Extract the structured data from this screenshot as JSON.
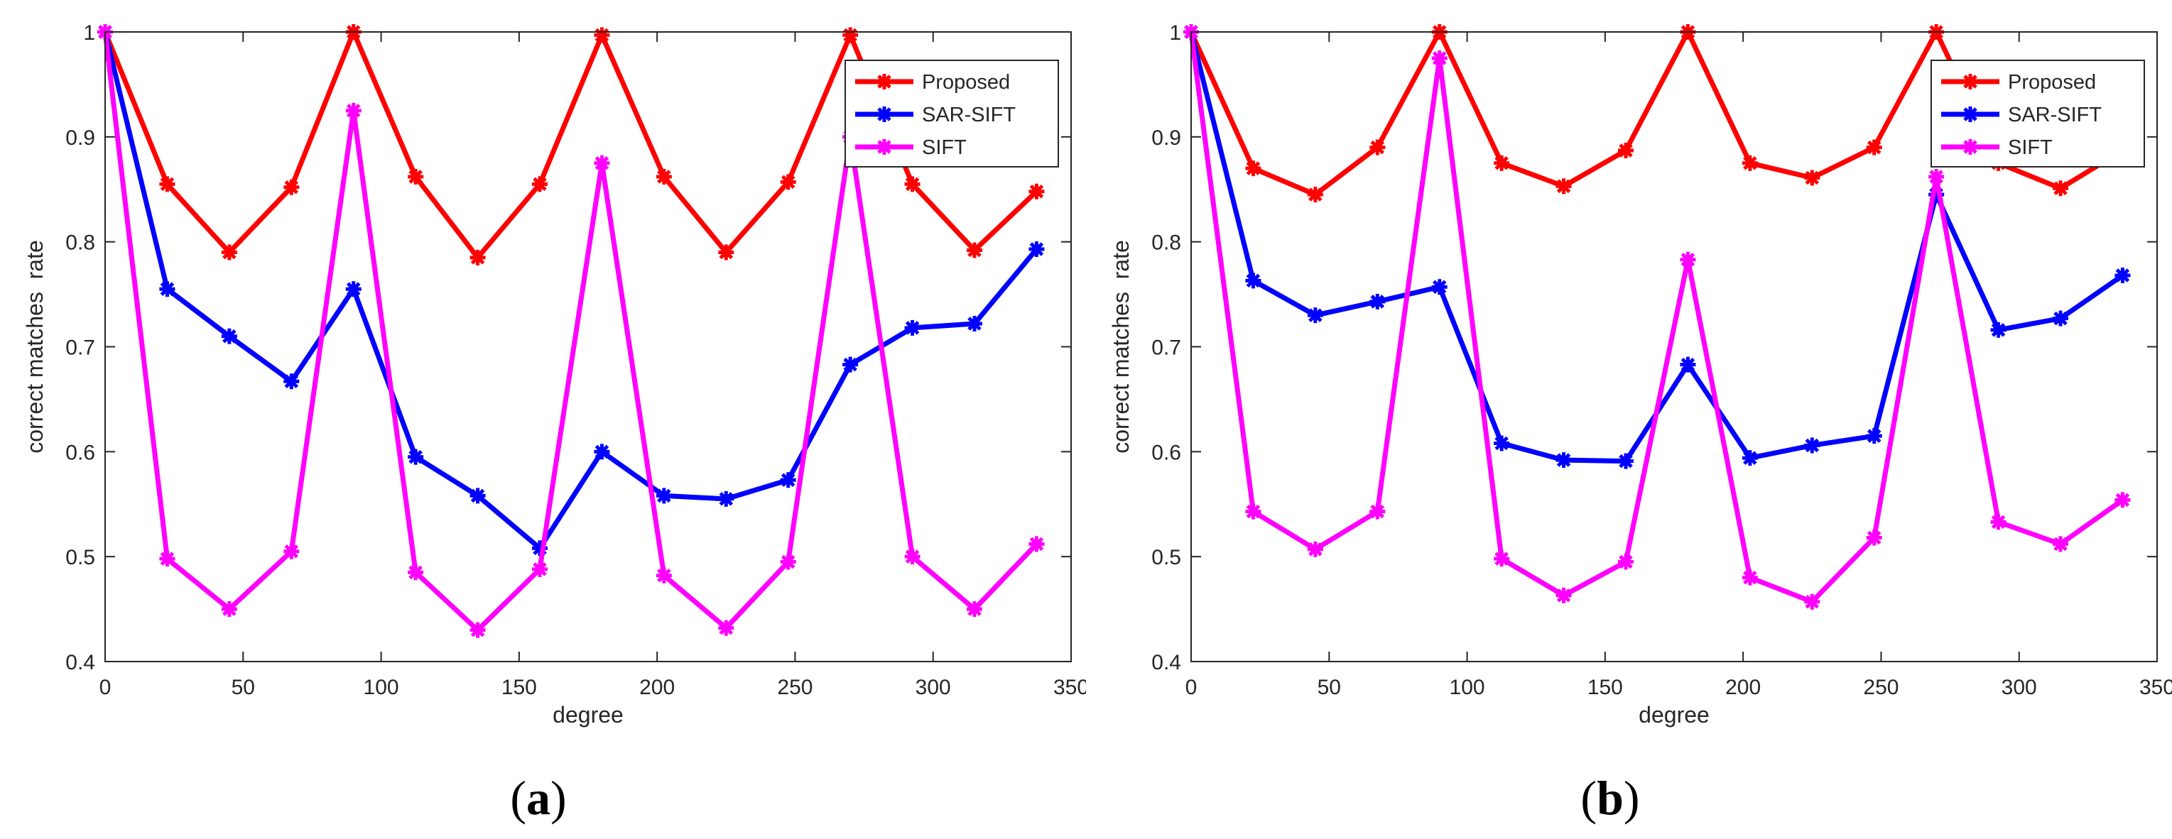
{
  "chart_data": [
    {
      "type": "line",
      "panel_label": "a",
      "xlabel": "degree",
      "ylabel": "correct matches  rate",
      "xlim": [
        0,
        350
      ],
      "ylim": [
        0.4,
        1
      ],
      "xticks": [
        0,
        50,
        100,
        150,
        200,
        250,
        300,
        350
      ],
      "yticks": [
        0.4,
        0.5,
        0.6,
        0.7,
        0.8,
        0.9,
        1
      ],
      "ytick_labels": [
        "0.4",
        "0.5",
        "0.6",
        "0.7",
        "0.8",
        "0.9",
        "1"
      ],
      "legend_position": "top-right",
      "x": [
        0,
        22.5,
        45,
        67.5,
        90,
        112.5,
        135,
        157.5,
        180,
        202.5,
        225,
        247.5,
        270,
        292.5,
        315,
        337.5
      ],
      "series": [
        {
          "name": "Proposed",
          "color": "#ff0000",
          "values": [
            1.0,
            0.855,
            0.79,
            0.852,
            1.0,
            0.862,
            0.785,
            0.855,
            0.997,
            0.862,
            0.79,
            0.857,
            0.997,
            0.855,
            0.792,
            0.848
          ]
        },
        {
          "name": "SAR-SIFT",
          "color": "#0000ff",
          "values": [
            1.0,
            0.755,
            0.71,
            0.667,
            0.755,
            0.595,
            0.558,
            0.508,
            0.6,
            0.558,
            0.555,
            0.573,
            0.683,
            0.718,
            0.722,
            0.793
          ]
        },
        {
          "name": "SIFT",
          "color": "#ff00ff",
          "values": [
            1.0,
            0.498,
            0.45,
            0.505,
            0.925,
            0.485,
            0.43,
            0.488,
            0.875,
            0.482,
            0.432,
            0.495,
            0.9,
            0.5,
            0.45,
            0.512
          ]
        }
      ]
    },
    {
      "type": "line",
      "panel_label": "b",
      "xlabel": "degree",
      "ylabel": "correct matches  rate",
      "xlim": [
        0,
        350
      ],
      "ylim": [
        0.4,
        1
      ],
      "xticks": [
        0,
        50,
        100,
        150,
        200,
        250,
        300,
        350
      ],
      "yticks": [
        0.4,
        0.5,
        0.6,
        0.7,
        0.8,
        0.9,
        1
      ],
      "ytick_labels": [
        "0.4",
        "0.5",
        "0.6",
        "0.7",
        "0.8",
        "0.9",
        "1"
      ],
      "legend_position": "top-right",
      "x": [
        0,
        22.5,
        45,
        67.5,
        90,
        112.5,
        135,
        157.5,
        180,
        202.5,
        225,
        247.5,
        270,
        292.5,
        315,
        337.5
      ],
      "series": [
        {
          "name": "Proposed",
          "color": "#ff0000",
          "values": [
            1.0,
            0.87,
            0.845,
            0.89,
            1.0,
            0.875,
            0.853,
            0.887,
            1.0,
            0.875,
            0.861,
            0.89,
            1.0,
            0.875,
            0.851,
            0.887
          ]
        },
        {
          "name": "SAR-SIFT",
          "color": "#0000ff",
          "values": [
            1.0,
            0.763,
            0.73,
            0.743,
            0.757,
            0.608,
            0.592,
            0.591,
            0.683,
            0.594,
            0.606,
            0.615,
            0.845,
            0.716,
            0.727,
            0.768
          ]
        },
        {
          "name": "SIFT",
          "color": "#ff00ff",
          "values": [
            1.0,
            0.543,
            0.507,
            0.543,
            0.975,
            0.498,
            0.463,
            0.495,
            0.783,
            0.48,
            0.457,
            0.518,
            0.862,
            0.533,
            0.512,
            0.554
          ]
        }
      ]
    }
  ]
}
